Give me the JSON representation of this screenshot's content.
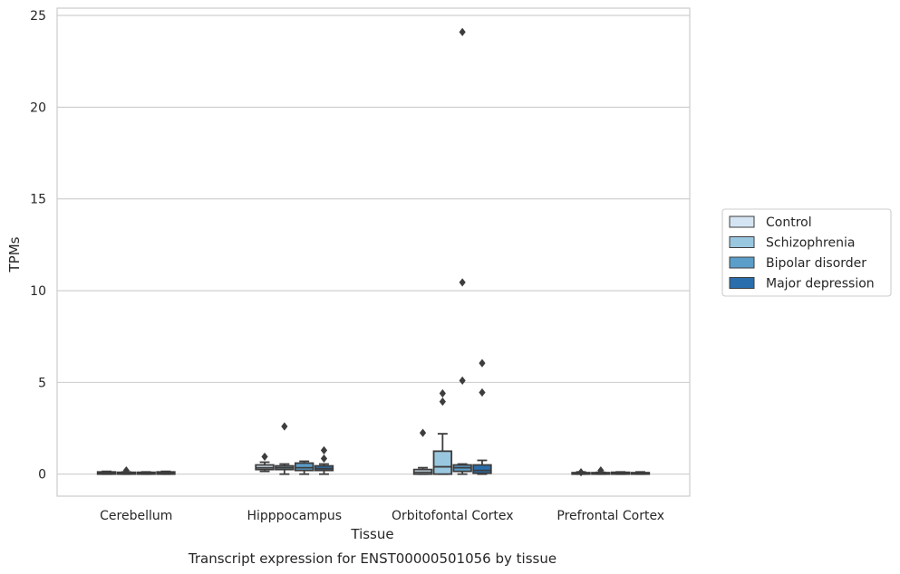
{
  "caption": "Transcript expression for ENST00000501056 by tissue",
  "chart_data": {
    "type": "box",
    "title": "",
    "xlabel": "Tissue",
    "ylabel": "TPMs",
    "ylim": [
      -1.2,
      25.4
    ],
    "yticks": [
      0,
      5,
      10,
      15,
      20,
      25
    ],
    "grid": "horizontal",
    "legend_position": "right",
    "categories": [
      "Cerebellum",
      "Hipppocampus",
      "Orbitofontal Cortex",
      "Prefrontal Cortex"
    ],
    "series": [
      {
        "name": "Control",
        "color": "#d4e4f2",
        "boxes": [
          {
            "whislo": 0.0,
            "q1": 0.0,
            "med": 0.05,
            "q3": 0.12,
            "whishi": 0.15,
            "fliers": []
          },
          {
            "whislo": 0.15,
            "q1": 0.25,
            "med": 0.35,
            "q3": 0.5,
            "whishi": 0.65,
            "fliers": [
              0.95
            ]
          },
          {
            "whislo": 0.0,
            "q1": 0.0,
            "med": 0.1,
            "q3": 0.25,
            "whishi": 0.35,
            "fliers": [
              2.25
            ]
          },
          {
            "whislo": 0.0,
            "q1": 0.0,
            "med": 0.03,
            "q3": 0.08,
            "whishi": 0.12,
            "fliers": [
              0.1
            ]
          }
        ]
      },
      {
        "name": "Schizophrenia",
        "color": "#9ac7e0",
        "boxes": [
          {
            "whislo": 0.0,
            "q1": 0.0,
            "med": 0.05,
            "q3": 0.1,
            "whishi": 0.12,
            "fliers": [
              0.2
            ]
          },
          {
            "whislo": 0.0,
            "q1": 0.25,
            "med": 0.35,
            "q3": 0.45,
            "whishi": 0.55,
            "fliers": [
              2.6
            ]
          },
          {
            "whislo": 0.0,
            "q1": 0.0,
            "med": 0.4,
            "q3": 1.25,
            "whishi": 2.2,
            "fliers": [
              3.95,
              4.4
            ]
          },
          {
            "whislo": 0.0,
            "q1": 0.0,
            "med": 0.03,
            "q3": 0.08,
            "whishi": 0.1,
            "fliers": [
              0.2
            ]
          }
        ]
      },
      {
        "name": "Bipolar disorder",
        "color": "#5b9ec9",
        "boxes": [
          {
            "whislo": 0.0,
            "q1": 0.0,
            "med": 0.05,
            "q3": 0.1,
            "whishi": 0.12,
            "fliers": []
          },
          {
            "whislo": 0.0,
            "q1": 0.2,
            "med": 0.35,
            "q3": 0.6,
            "whishi": 0.7,
            "fliers": []
          },
          {
            "whislo": 0.0,
            "q1": 0.15,
            "med": 0.35,
            "q3": 0.5,
            "whishi": 0.55,
            "fliers": [
              5.1,
              10.45,
              24.1
            ]
          },
          {
            "whislo": 0.0,
            "q1": 0.0,
            "med": 0.05,
            "q3": 0.1,
            "whishi": 0.12,
            "fliers": []
          }
        ]
      },
      {
        "name": "Major depression",
        "color": "#2a6ead",
        "boxes": [
          {
            "whislo": 0.0,
            "q1": 0.0,
            "med": 0.05,
            "q3": 0.12,
            "whishi": 0.15,
            "fliers": []
          },
          {
            "whislo": 0.0,
            "q1": 0.2,
            "med": 0.3,
            "q3": 0.45,
            "whishi": 0.55,
            "fliers": [
              0.85,
              1.3
            ]
          },
          {
            "whislo": 0.0,
            "q1": 0.05,
            "med": 0.2,
            "q3": 0.5,
            "whishi": 0.75,
            "fliers": [
              4.45,
              6.05
            ]
          },
          {
            "whislo": 0.0,
            "q1": 0.0,
            "med": 0.03,
            "q3": 0.08,
            "whishi": 0.12,
            "fliers": []
          }
        ]
      }
    ]
  }
}
